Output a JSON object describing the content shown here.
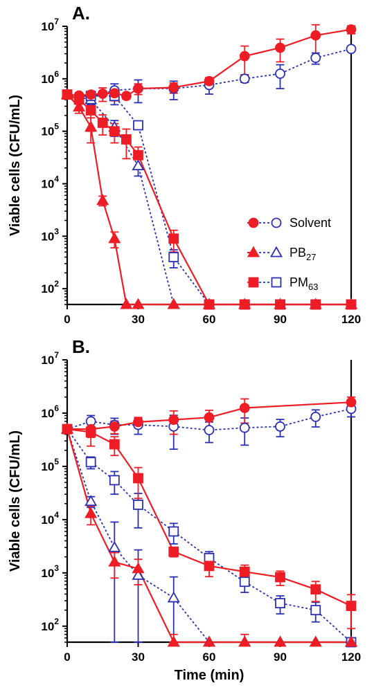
{
  "colors": {
    "red": "#ee1c25",
    "blue": "#2b2fb4",
    "axis": "#000000"
  },
  "legend": [
    {
      "label": "Solvent",
      "sub": "",
      "red_marker": "circle-filled",
      "blue_marker": "circle-open"
    },
    {
      "label": "PB",
      "sub": "27",
      "red_marker": "triangle-filled",
      "blue_marker": "triangle-open"
    },
    {
      "label": "PM",
      "sub": "63",
      "red_marker": "square-filled",
      "blue_marker": "square-open"
    }
  ],
  "chart_data": [
    {
      "type": "line",
      "title": "A.",
      "xlabel": "",
      "ylabel": "Viable cells (CFU/mL)",
      "y_scale": "log",
      "xlim": [
        0,
        120
      ],
      "ylim": [
        50,
        10000000
      ],
      "x_ticks": [
        "0",
        "30",
        "60",
        "90",
        "120"
      ],
      "y_ticks": [
        {
          "base": "10",
          "exp": "2"
        },
        {
          "base": "10",
          "exp": "3"
        },
        {
          "base": "10",
          "exp": "4"
        },
        {
          "base": "10",
          "exp": "5"
        },
        {
          "base": "10",
          "exp": "6"
        },
        {
          "base": "10",
          "exp": "7"
        }
      ],
      "legend_position": "middle-right",
      "series": [
        {
          "name": "Solvent",
          "color": "red",
          "marker": "circle-filled",
          "line": "solid",
          "x": [
            0,
            5,
            10,
            15,
            20,
            25,
            30,
            45,
            60,
            75,
            90,
            105,
            120
          ],
          "y": [
            500000,
            480000,
            500000,
            520000,
            530000,
            470000,
            650000,
            680000,
            900000,
            2700000,
            3900000,
            6700000,
            8700000
          ],
          "err": [
            80000,
            60000,
            80000,
            150000,
            150000,
            60000,
            150000,
            150000,
            150000,
            1500000,
            1800000,
            4000000,
            1500000
          ]
        },
        {
          "name": "Solvent",
          "color": "blue",
          "marker": "circle-open",
          "line": "dashed",
          "x": [
            0,
            10,
            20,
            30,
            45,
            60,
            75,
            90,
            105,
            120
          ],
          "y": [
            500000,
            450000,
            600000,
            650000,
            650000,
            760000,
            1000000,
            1250000,
            2500000,
            3700000
          ],
          "err": [
            80000,
            100000,
            200000,
            300000,
            250000,
            250000,
            150000,
            600000,
            600000,
            400000
          ]
        },
        {
          "name": "PB27",
          "color": "red",
          "marker": "triangle-filled",
          "line": "solid",
          "x": [
            0,
            5,
            10,
            15,
            20,
            25,
            30,
            45,
            60,
            75,
            90,
            105,
            120
          ],
          "y": [
            500000,
            290000,
            120000,
            4800,
            900,
            50,
            50,
            50,
            50,
            50,
            50,
            50,
            50
          ],
          "err": [
            50000,
            70000,
            60000,
            1000,
            300,
            0,
            0,
            0,
            0,
            0,
            0,
            0,
            0
          ]
        },
        {
          "name": "PB27",
          "color": "blue",
          "marker": "triangle-open",
          "line": "dashed",
          "x": [
            0,
            10,
            20,
            30,
            45,
            60,
            75,
            90,
            105,
            120
          ],
          "y": [
            500000,
            400000,
            120000,
            22000,
            50,
            50,
            50,
            50,
            50,
            50
          ],
          "err": [
            50000,
            80000,
            40000,
            8000,
            0,
            0,
            0,
            0,
            0,
            0
          ]
        },
        {
          "name": "PM63",
          "color": "red",
          "marker": "square-filled",
          "line": "solid",
          "x": [
            0,
            5,
            10,
            15,
            20,
            25,
            30,
            45,
            60,
            75,
            90,
            105,
            120
          ],
          "y": [
            500000,
            400000,
            250000,
            145000,
            100000,
            70000,
            35000,
            900,
            50,
            50,
            50,
            50,
            50
          ],
          "err": [
            50000,
            120000,
            150000,
            60000,
            40000,
            40000,
            15000,
            400,
            0,
            0,
            0,
            0,
            0
          ]
        },
        {
          "name": "PM63",
          "color": "blue",
          "marker": "square-open",
          "line": "dashed",
          "x": [
            0,
            10,
            20,
            30,
            45,
            60,
            75,
            90,
            105,
            120
          ],
          "y": [
            500000,
            470000,
            470000,
            130000,
            400,
            50,
            50,
            50,
            50,
            50
          ],
          "err": [
            50000,
            80000,
            150000,
            20000,
            150,
            0,
            0,
            0,
            0,
            0
          ]
        }
      ]
    },
    {
      "type": "line",
      "title": "B.",
      "xlabel": "Time (min)",
      "ylabel": "Viable cells (CFU/mL)",
      "y_scale": "log",
      "xlim": [
        0,
        120
      ],
      "ylim": [
        50,
        10000000
      ],
      "x_ticks": [
        "0",
        "30",
        "60",
        "90",
        "120"
      ],
      "y_ticks": [
        {
          "base": "10",
          "exp": "2"
        },
        {
          "base": "10",
          "exp": "3"
        },
        {
          "base": "10",
          "exp": "4"
        },
        {
          "base": "10",
          "exp": "5"
        },
        {
          "base": "10",
          "exp": "6"
        },
        {
          "base": "10",
          "exp": "7"
        }
      ],
      "series": [
        {
          "name": "Solvent",
          "color": "red",
          "marker": "circle-filled",
          "line": "solid",
          "x": [
            0,
            10,
            20,
            30,
            45,
            60,
            75,
            120
          ],
          "y": [
            500000,
            500000,
            560000,
            680000,
            750000,
            830000,
            1250000,
            1600000
          ],
          "err": [
            50000,
            150000,
            150000,
            150000,
            350000,
            300000,
            600000,
            400000
          ]
        },
        {
          "name": "Solvent",
          "color": "blue",
          "marker": "circle-open",
          "line": "dashed",
          "x": [
            0,
            10,
            20,
            30,
            45,
            60,
            75,
            90,
            105,
            120
          ],
          "y": [
            500000,
            700000,
            600000,
            600000,
            560000,
            480000,
            530000,
            560000,
            850000,
            1200000
          ],
          "err": [
            50000,
            200000,
            200000,
            200000,
            350000,
            200000,
            280000,
            200000,
            300000,
            350000
          ]
        },
        {
          "name": "PB27",
          "color": "red",
          "marker": "triangle-filled",
          "line": "solid",
          "x": [
            0,
            10,
            20,
            30,
            45,
            60,
            75,
            90,
            105,
            120
          ],
          "y": [
            500000,
            13000,
            1600,
            1200,
            50,
            50,
            50,
            50,
            50,
            50
          ],
          "err": [
            50000,
            5000,
            800,
            600,
            20,
            0,
            20,
            0,
            0,
            0
          ]
        },
        {
          "name": "PB27",
          "color": "blue",
          "marker": "triangle-open",
          "line": "dashed",
          "x": [
            0,
            10,
            20,
            30,
            45,
            60,
            75,
            90,
            105,
            120
          ],
          "y": [
            500000,
            22000,
            3000,
            900,
            340,
            50,
            50,
            50,
            50,
            50
          ],
          "err": [
            50000,
            5000,
            6000,
            1800,
            500,
            0,
            0,
            0,
            0,
            0
          ]
        },
        {
          "name": "PM63",
          "color": "red",
          "marker": "square-filled",
          "line": "solid",
          "x": [
            0,
            10,
            20,
            30,
            45,
            60,
            75,
            90,
            105,
            120
          ],
          "y": [
            500000,
            440000,
            260000,
            60000,
            2500,
            1350,
            1050,
            830,
            490,
            240
          ],
          "err": [
            50000,
            200000,
            100000,
            35000,
            500,
            500,
            350,
            250,
            200,
            150
          ]
        },
        {
          "name": "PM63",
          "color": "blue",
          "marker": "square-open",
          "line": "dashed",
          "x": [
            0,
            10,
            20,
            30,
            45,
            60,
            75,
            90,
            105,
            120
          ],
          "y": [
            500000,
            120000,
            55000,
            19000,
            6000,
            1900,
            680,
            270,
            200,
            50
          ],
          "err": [
            50000,
            30000,
            25000,
            12000,
            2500,
            600,
            250,
            100,
            80,
            0
          ]
        }
      ]
    }
  ]
}
